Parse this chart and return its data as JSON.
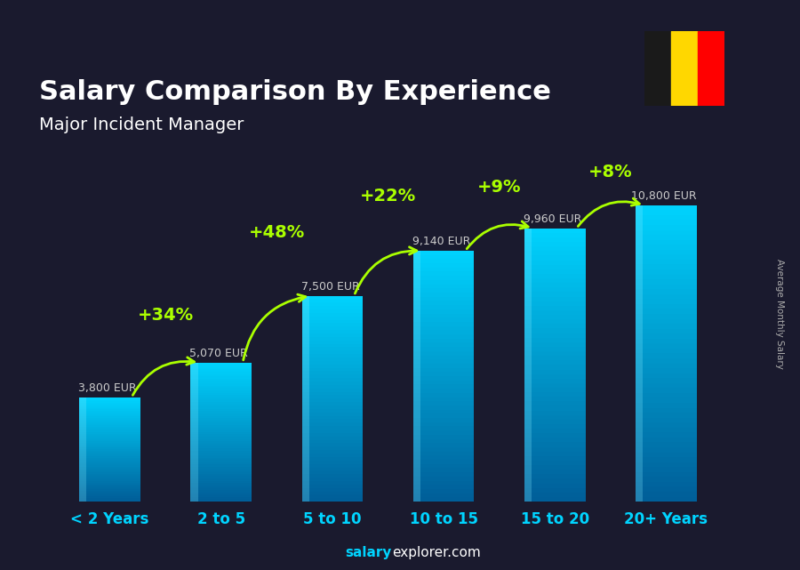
{
  "title": "Salary Comparison By Experience",
  "subtitle": "Major Incident Manager",
  "categories": [
    "< 2 Years",
    "2 to 5",
    "5 to 10",
    "10 to 15",
    "15 to 20",
    "20+ Years"
  ],
  "values": [
    3800,
    5070,
    7500,
    9140,
    9960,
    10800
  ],
  "labels": [
    "3,800 EUR",
    "5,070 EUR",
    "7,500 EUR",
    "9,140 EUR",
    "9,960 EUR",
    "10,800 EUR"
  ],
  "pct_changes": [
    "+34%",
    "+48%",
    "+22%",
    "+9%",
    "+8%"
  ],
  "bar_color_top": "#00d4ff",
  "bar_color_bottom": "#005f99",
  "background_color": "#1a1a2e",
  "title_color": "#ffffff",
  "subtitle_color": "#ffffff",
  "label_color": "#cccccc",
  "pct_color": "#aaff00",
  "arrow_color": "#aaff00",
  "xlabel_color": "#00d4ff",
  "footer_bold": "salary",
  "footer_normal": "explorer.com",
  "ylabel_text": "Average Monthly Salary",
  "ylabel_color": "#aaaaaa",
  "ylim": [
    0,
    13500
  ],
  "arc_heights": [
    1400,
    2000,
    1700,
    1200,
    900
  ],
  "pct_fontsize": 14,
  "label_fontsize": 9,
  "title_fontsize": 22,
  "subtitle_fontsize": 14,
  "xtick_fontsize": 12
}
